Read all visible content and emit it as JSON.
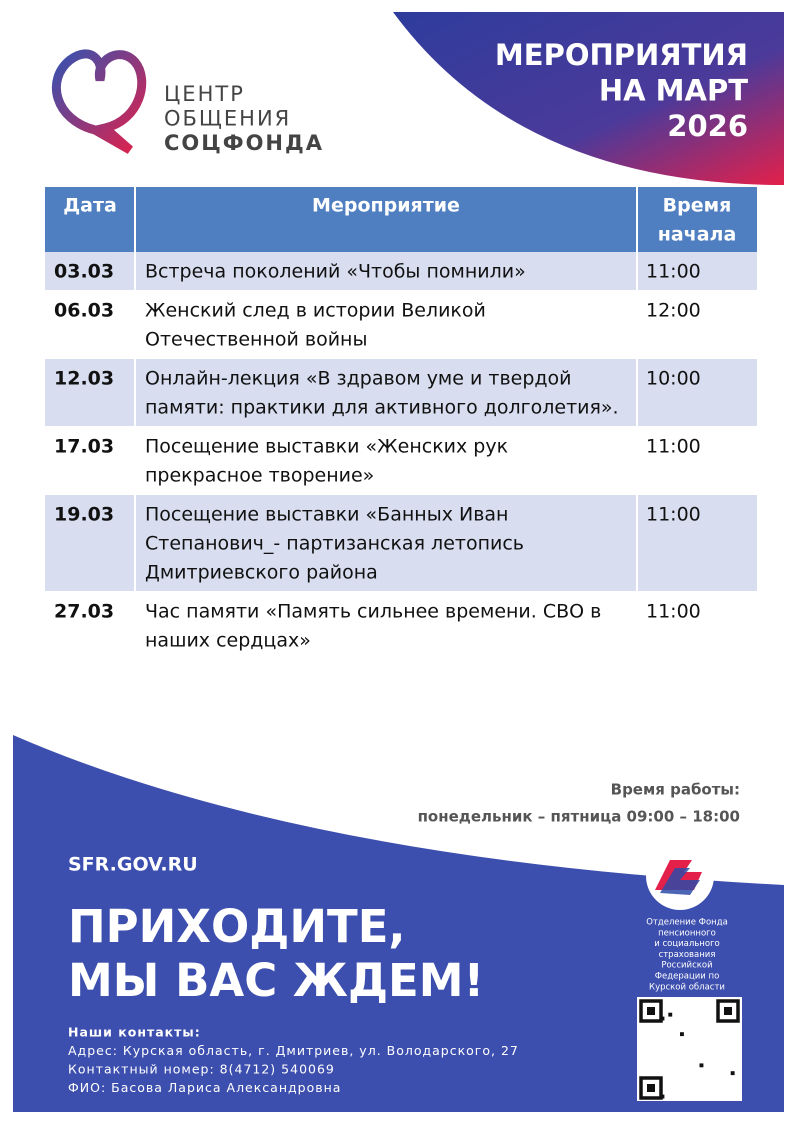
{
  "header": {
    "title_lines": [
      "МЕРОПРИЯТИЯ",
      "НА МАРТ",
      "2026"
    ],
    "logo_lines": [
      "ЦЕНТР",
      "ОБЩЕНИЯ",
      "СОЦФОНДА"
    ]
  },
  "table": {
    "columns": [
      [
        "Дата"
      ],
      [
        "Мероприятие"
      ],
      [
        "Время",
        "начала"
      ]
    ],
    "rows": [
      {
        "date": "03.03",
        "event": [
          "Встреча поколений «Чтобы помнили»"
        ],
        "time": "11:00"
      },
      {
        "date": "06.03",
        "event": [
          "Женский след в истории Великой",
          "Отечественной войны"
        ],
        "time": "12:00"
      },
      {
        "date": "12.03",
        "event": [
          "Онлайн-лекция «В здравом уме и твердой",
          "памяти: практики для активного долголетия»."
        ],
        "time": "10:00"
      },
      {
        "date": "17.03",
        "event": [
          "Посещение выставки «Женских рук",
          "прекрасное творение»"
        ],
        "time": "11:00"
      },
      {
        "date": "19.03",
        "event": [
          "Посещение выставки «Банных Иван",
          "Степанович_- партизанская летопись",
          "Дмитриевского района"
        ],
        "time": "11:00"
      },
      {
        "date": "27.03",
        "event": [
          "Час памяти «Память сильнее времени. СВО в",
          "наших сердцах»"
        ],
        "time": "11:00"
      }
    ]
  },
  "footer": {
    "hours_title": "Время работы:",
    "hours": "понедельник – пятница 09:00 – 18:00",
    "site": "SFR.GOV.RU",
    "slogan_lines": [
      "ПРИХОДИТЕ,",
      "МЫ ВАС ЖДЕМ!"
    ],
    "contacts": [
      "Наши контакты:",
      "Адрес: Курская область, г. Дмитриев, ул. Володарского, 27",
      "Контактный номер: 8(4712) 540069",
      "ФИО: Басова Лариса Александровна"
    ],
    "org_lines": [
      "Отделение Фонда",
      "пенсионного",
      "и социального",
      "страхования",
      "Российской",
      "Федерации по",
      "Курской области"
    ]
  }
}
